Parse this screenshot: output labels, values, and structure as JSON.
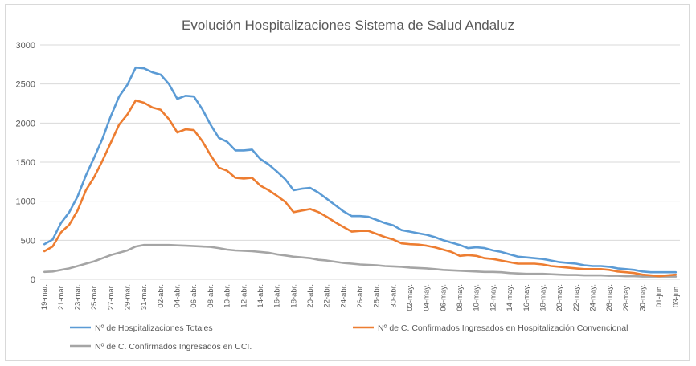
{
  "chart_data": {
    "type": "line",
    "title": "Evolución Hospitalizaciones Sistema de Salud Andaluz",
    "xlabel": "",
    "ylabel": "",
    "ylim": [
      0,
      3000
    ],
    "yticks": [
      "0",
      "500",
      "1000",
      "1500",
      "2000",
      "2500",
      "3000"
    ],
    "grid": true,
    "legend_position": "bottom",
    "x_tick_labels": [
      "19-mar.",
      "21-mar.",
      "23-mar.",
      "25-mar.",
      "27-mar.",
      "29-mar.",
      "31-mar.",
      "02-abr.",
      "04-abr.",
      "06-abr.",
      "08-abr.",
      "10-abr.",
      "12-abr.",
      "14-abr.",
      "16-abr.",
      "18-abr.",
      "20-abr.",
      "22-abr.",
      "24-abr.",
      "26-abr.",
      "28-abr.",
      "30-abr.",
      "02-may.",
      "04-may.",
      "06-may.",
      "08-may.",
      "10-may.",
      "12-may.",
      "14-may.",
      "16-may.",
      "18-may.",
      "20-may.",
      "22-may.",
      "24-may.",
      "26-may.",
      "28-may.",
      "30-may.",
      "01-jun.",
      "03-jun."
    ],
    "x": [
      "19-mar.",
      "20-mar.",
      "21-mar.",
      "22-mar.",
      "23-mar.",
      "24-mar.",
      "25-mar.",
      "26-mar.",
      "27-mar.",
      "28-mar.",
      "29-mar.",
      "30-mar.",
      "31-mar.",
      "01-abr.",
      "02-abr.",
      "03-abr.",
      "04-abr.",
      "05-abr.",
      "06-abr.",
      "07-abr.",
      "08-abr.",
      "09-abr.",
      "10-abr.",
      "11-abr.",
      "12-abr.",
      "13-abr.",
      "14-abr.",
      "15-abr.",
      "16-abr.",
      "17-abr.",
      "18-abr.",
      "19-abr.",
      "20-abr.",
      "21-abr.",
      "22-abr.",
      "23-abr.",
      "24-abr.",
      "25-abr.",
      "26-abr.",
      "27-abr.",
      "28-abr.",
      "29-abr.",
      "30-abr.",
      "01-may.",
      "02-may.",
      "03-may.",
      "04-may.",
      "05-may.",
      "06-may.",
      "07-may.",
      "08-may.",
      "09-may.",
      "10-may.",
      "11-may.",
      "12-may.",
      "13-may.",
      "14-may.",
      "15-may.",
      "16-may.",
      "17-may.",
      "18-may.",
      "19-may.",
      "20-may.",
      "21-may.",
      "22-may.",
      "23-may.",
      "24-may.",
      "25-may.",
      "26-may.",
      "27-may.",
      "28-may.",
      "29-may.",
      "30-may.",
      "31-may.",
      "01-jun.",
      "02-jun.",
      "03-jun."
    ],
    "series": [
      {
        "name": "Nº de Hospitalizaciones Totales",
        "color": "#5b9bd5",
        "values": [
          450,
          510,
          720,
          860,
          1060,
          1330,
          1560,
          1800,
          2090,
          2340,
          2490,
          2710,
          2700,
          2650,
          2620,
          2500,
          2310,
          2350,
          2340,
          2180,
          1980,
          1810,
          1760,
          1650,
          1650,
          1660,
          1540,
          1470,
          1380,
          1280,
          1140,
          1160,
          1170,
          1110,
          1030,
          950,
          870,
          810,
          810,
          800,
          760,
          720,
          690,
          630,
          610,
          590,
          570,
          540,
          500,
          470,
          440,
          400,
          410,
          400,
          370,
          350,
          320,
          290,
          280,
          270,
          260,
          240,
          220,
          210,
          200,
          180,
          170,
          170,
          160,
          140,
          130,
          120,
          100,
          90,
          90,
          90,
          90
        ]
      },
      {
        "name": "Nº de C. Confirmados Ingresados en Hospitalización Convencional",
        "color": "#ed7d31",
        "values": [
          360,
          420,
          600,
          700,
          880,
          1140,
          1310,
          1520,
          1750,
          1980,
          2110,
          2290,
          2260,
          2200,
          2170,
          2050,
          1880,
          1920,
          1910,
          1770,
          1590,
          1430,
          1390,
          1300,
          1290,
          1300,
          1200,
          1140,
          1070,
          990,
          860,
          880,
          900,
          860,
          800,
          730,
          670,
          610,
          620,
          620,
          580,
          540,
          510,
          460,
          450,
          445,
          430,
          410,
          380,
          350,
          300,
          310,
          300,
          270,
          260,
          240,
          220,
          200,
          200,
          200,
          190,
          170,
          160,
          150,
          140,
          130,
          130,
          130,
          120,
          100,
          90,
          80,
          60,
          50,
          40,
          50,
          60
        ]
      },
      {
        "name": "Nº de C. Confirmados Ingresados en UCI.",
        "color": "#a5a5a5",
        "values": [
          95,
          100,
          120,
          140,
          170,
          200,
          230,
          270,
          310,
          340,
          370,
          420,
          440,
          440,
          440,
          440,
          435,
          430,
          425,
          420,
          415,
          400,
          380,
          370,
          365,
          360,
          350,
          340,
          320,
          305,
          290,
          280,
          270,
          250,
          240,
          225,
          210,
          200,
          190,
          185,
          180,
          170,
          165,
          160,
          150,
          145,
          140,
          130,
          120,
          115,
          110,
          105,
          100,
          95,
          95,
          90,
          80,
          75,
          70,
          70,
          70,
          65,
          60,
          55,
          55,
          50,
          50,
          50,
          45,
          45,
          40,
          40,
          35,
          35,
          35,
          35,
          35
        ]
      }
    ]
  }
}
